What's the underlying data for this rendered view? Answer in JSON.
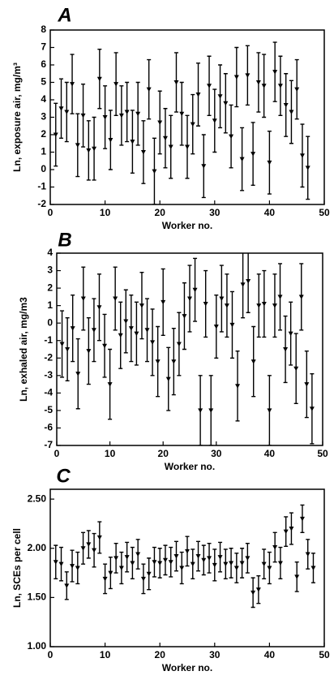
{
  "chart_data": [
    {
      "type": "scatter",
      "title": "A",
      "x_label": "Worker no.",
      "y_label": "Ln, exposure air, mg/m³",
      "xlim": [
        0,
        50
      ],
      "xticks": [
        0,
        10,
        20,
        30,
        40,
        50
      ],
      "ylim": [
        -2,
        8
      ],
      "yticks": [
        -2,
        -1,
        0,
        1,
        2,
        3,
        4,
        5,
        6,
        7,
        8
      ],
      "color": "#000000",
      "x": [
        1,
        2,
        3,
        4,
        5,
        6,
        7,
        8,
        9,
        10,
        11,
        12,
        13,
        14,
        15,
        16,
        17,
        18,
        19,
        20,
        21,
        22,
        23,
        24,
        25,
        26,
        27,
        28,
        29,
        30,
        31,
        32,
        33,
        34,
        35,
        36,
        37,
        38,
        39,
        40,
        41,
        42,
        43,
        44,
        45,
        46,
        47
      ],
      "values": [
        2.0,
        3.5,
        3.3,
        4.9,
        1.4,
        3.1,
        1.1,
        1.2,
        5.2,
        3.0,
        1.7,
        4.9,
        3.1,
        3.3,
        1.6,
        3.2,
        1.0,
        4.6,
        -0.1,
        2.7,
        1.8,
        1.3,
        5.0,
        3.2,
        1.3,
        2.6,
        4.3,
        0.2,
        4.8,
        2.8,
        4.2,
        3.8,
        1.9,
        5.3,
        0.6,
        5.4,
        0.9,
        5.0,
        4.8,
        0.4,
        5.6,
        4.8,
        3.7,
        3.3,
        4.6,
        0.8,
        0.1
      ],
      "errors": [
        1.8,
        1.7,
        1.7,
        1.7,
        1.8,
        1.8,
        1.7,
        1.8,
        1.7,
        1.8,
        1.7,
        1.8,
        1.7,
        1.7,
        1.8,
        1.8,
        1.8,
        1.7,
        1.9,
        1.8,
        1.7,
        1.8,
        1.7,
        1.8,
        1.8,
        1.7,
        1.8,
        1.8,
        1.7,
        1.8,
        1.8,
        1.7,
        1.8,
        1.7,
        1.8,
        1.7,
        1.8,
        1.7,
        1.8,
        1.8,
        1.7,
        1.7,
        1.8,
        1.8,
        1.7,
        1.8,
        1.8
      ]
    },
    {
      "type": "scatter",
      "title": "B",
      "x_label": "Worker no.",
      "y_label": "Ln, exhaled air, mg/m3",
      "xlim": [
        0,
        50
      ],
      "xticks": [
        0,
        10,
        20,
        30,
        40,
        50
      ],
      "ylim": [
        -7,
        4
      ],
      "yticks": [
        -7,
        -6,
        -5,
        -4,
        -3,
        -2,
        -1,
        0,
        1,
        2,
        3,
        4
      ],
      "color": "#000000",
      "x": [
        1,
        2,
        3,
        4,
        5,
        6,
        7,
        8,
        9,
        10,
        11,
        12,
        13,
        14,
        15,
        16,
        17,
        18,
        19,
        20,
        21,
        22,
        23,
        24,
        25,
        26,
        27,
        28,
        29,
        30,
        31,
        32,
        33,
        34,
        35,
        36,
        37,
        38,
        39,
        40,
        41,
        42,
        43,
        44,
        45,
        46,
        47,
        48
      ],
      "values": [
        -1.2,
        -1.5,
        -0.3,
        -2.9,
        1.4,
        -1.6,
        -0.4,
        0.9,
        -1.3,
        -3.5,
        1.4,
        -0.7,
        0.1,
        -0.3,
        -0.6,
        1.0,
        -0.4,
        -1.1,
        -2.2,
        1.2,
        -3.2,
        -2.2,
        -1.2,
        0.4,
        1.4,
        1.9,
        -5.0,
        1.1,
        -5.0,
        -0.2,
        1.4,
        1.0,
        -0.1,
        -3.6,
        2.2,
        2.4,
        -2.2,
        1.0,
        1.1,
        -5.0,
        1.0,
        1.5,
        -1.5,
        -0.6,
        -2.6,
        1.5,
        -3.5,
        -4.9
      ],
      "errors": [
        1.9,
        1.8,
        1.9,
        2.0,
        1.8,
        1.9,
        1.8,
        1.9,
        1.8,
        2.0,
        1.8,
        1.9,
        1.8,
        1.9,
        1.8,
        1.9,
        1.8,
        1.9,
        2.0,
        1.9,
        1.8,
        1.9,
        1.8,
        1.9,
        1.9,
        1.8,
        2.0,
        1.9,
        2.0,
        1.8,
        1.9,
        1.8,
        1.9,
        2.0,
        1.9,
        1.8,
        2.0,
        1.8,
        1.9,
        2.0,
        1.8,
        1.9,
        1.9,
        1.8,
        2.0,
        1.9,
        1.9,
        2.0
      ]
    },
    {
      "type": "scatter",
      "title": "C",
      "x_label": "Worker no.",
      "y_label": "Ln, SCEs per cell",
      "xlim": [
        0,
        50
      ],
      "xticks": [
        0,
        10,
        20,
        30,
        40,
        50
      ],
      "ylim": [
        1.0,
        2.6
      ],
      "yticks": [
        {
          "value": 1.0,
          "label": "1.00"
        },
        {
          "value": 1.5,
          "label": "1.50"
        },
        {
          "value": 2.0,
          "label": "2.00"
        },
        {
          "value": 2.5,
          "label": "2.50"
        }
      ],
      "color": "#000000",
      "x": [
        1,
        2,
        3,
        4,
        5,
        6,
        7,
        8,
        9,
        10,
        11,
        12,
        13,
        14,
        15,
        16,
        17,
        18,
        19,
        20,
        21,
        22,
        23,
        24,
        25,
        26,
        27,
        28,
        29,
        30,
        31,
        32,
        33,
        34,
        35,
        36,
        37,
        38,
        39,
        40,
        41,
        42,
        43,
        44,
        45,
        46,
        47,
        48
      ],
      "values": [
        1.86,
        1.84,
        1.62,
        1.82,
        1.8,
        2.0,
        2.04,
        1.98,
        2.11,
        1.69,
        1.75,
        1.9,
        1.8,
        1.91,
        1.85,
        1.94,
        1.69,
        1.74,
        1.86,
        1.85,
        1.88,
        1.86,
        1.92,
        1.8,
        1.97,
        1.84,
        1.92,
        1.88,
        1.9,
        1.83,
        1.91,
        1.84,
        1.85,
        1.8,
        1.85,
        1.9,
        1.55,
        1.58,
        1.84,
        1.8,
        2.01,
        1.85,
        2.17,
        2.2,
        1.71,
        2.3,
        1.94,
        1.8
      ],
      "errors": [
        0.17,
        0.17,
        0.14,
        0.16,
        0.16,
        0.16,
        0.14,
        0.17,
        0.16,
        0.15,
        0.16,
        0.15,
        0.16,
        0.15,
        0.16,
        0.15,
        0.15,
        0.16,
        0.15,
        0.15,
        0.15,
        0.15,
        0.15,
        0.16,
        0.15,
        0.15,
        0.15,
        0.15,
        0.15,
        0.16,
        0.15,
        0.15,
        0.15,
        0.15,
        0.15,
        0.15,
        0.15,
        0.14,
        0.15,
        0.16,
        0.15,
        0.16,
        0.15,
        0.16,
        0.15,
        0.14,
        0.15,
        0.15
      ]
    }
  ]
}
